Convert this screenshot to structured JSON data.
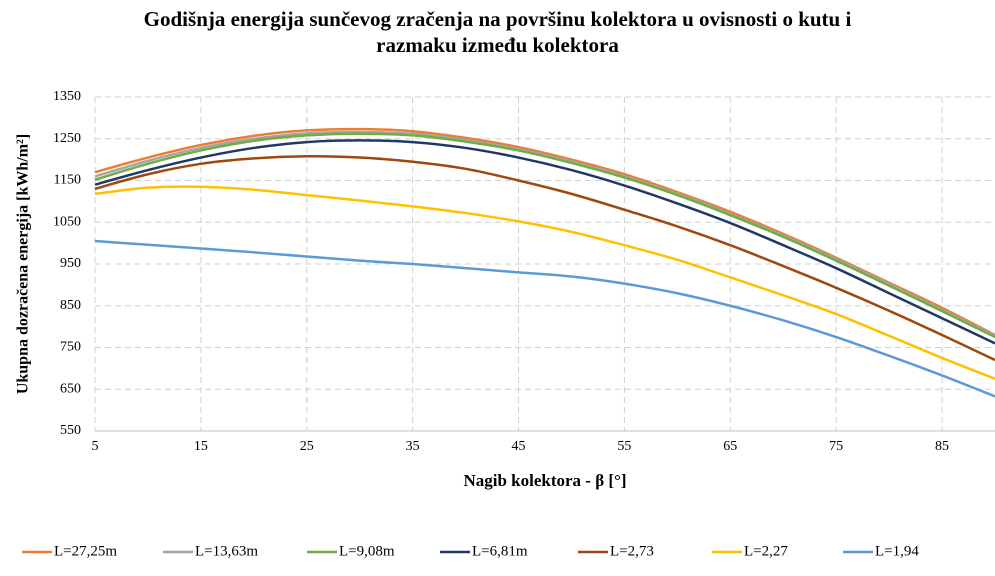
{
  "chart_data": {
    "type": "line",
    "title": "Godišnja energija sunčevog zračenja na površinu kolektora u ovisnosti o kutu i razmaku između kolektora",
    "x_label": "Nagib kolektora - β [°]",
    "y_label": "Ukupna dozračena energija [kWh/m²]",
    "x": [
      5,
      10,
      15,
      20,
      25,
      30,
      35,
      40,
      45,
      50,
      55,
      60,
      65,
      70,
      75,
      80,
      85,
      90
    ],
    "xlim": [
      5,
      90
    ],
    "xticks": [
      5,
      15,
      25,
      35,
      45,
      55,
      65,
      75,
      85
    ],
    "ylim": [
      550,
      1350
    ],
    "yticks": [
      550,
      650,
      750,
      850,
      950,
      1050,
      1150,
      1250,
      1350
    ],
    "grid": true,
    "legend": "bottom",
    "series": [
      {
        "name": "L=27,25m",
        "color": "#ed7d31",
        "values": [
          1170,
          1205,
          1235,
          1257,
          1270,
          1273,
          1268,
          1252,
          1230,
          1200,
          1165,
          1122,
          1075,
          1022,
          965,
          905,
          845,
          780
        ]
      },
      {
        "name": "L=13,63m",
        "color": "#a5a5a5",
        "values": [
          1160,
          1197,
          1228,
          1250,
          1263,
          1266,
          1262,
          1247,
          1225,
          1196,
          1160,
          1118,
          1070,
          1018,
          962,
          902,
          840,
          778
        ]
      },
      {
        "name": "L=9,08m",
        "color": "#70ad47",
        "values": [
          1152,
          1190,
          1222,
          1245,
          1258,
          1262,
          1258,
          1243,
          1222,
          1192,
          1157,
          1115,
          1067,
          1015,
          958,
          898,
          837,
          775
        ]
      },
      {
        "name": "L=6,81m",
        "color": "#203864",
        "values": [
          1140,
          1175,
          1205,
          1228,
          1242,
          1246,
          1242,
          1228,
          1205,
          1175,
          1138,
          1095,
          1048,
          995,
          940,
          880,
          820,
          760
        ]
      },
      {
        "name": "L=2,73",
        "color": "#9e480e",
        "values": [
          1130,
          1165,
          1190,
          1203,
          1208,
          1205,
          1195,
          1178,
          1150,
          1118,
          1080,
          1040,
          995,
          945,
          893,
          838,
          780,
          720
        ]
      },
      {
        "name": "L=2,27",
        "color": "#ffc000",
        "values": [
          1118,
          1133,
          1135,
          1128,
          1115,
          1102,
          1088,
          1072,
          1052,
          1027,
          995,
          960,
          918,
          875,
          830,
          778,
          725,
          675
        ]
      },
      {
        "name": "L=1,94",
        "color": "#5b9bd5",
        "values": [
          1005,
          996,
          987,
          978,
          968,
          958,
          950,
          940,
          930,
          920,
          903,
          880,
          850,
          815,
          775,
          730,
          683,
          633
        ]
      }
    ]
  }
}
